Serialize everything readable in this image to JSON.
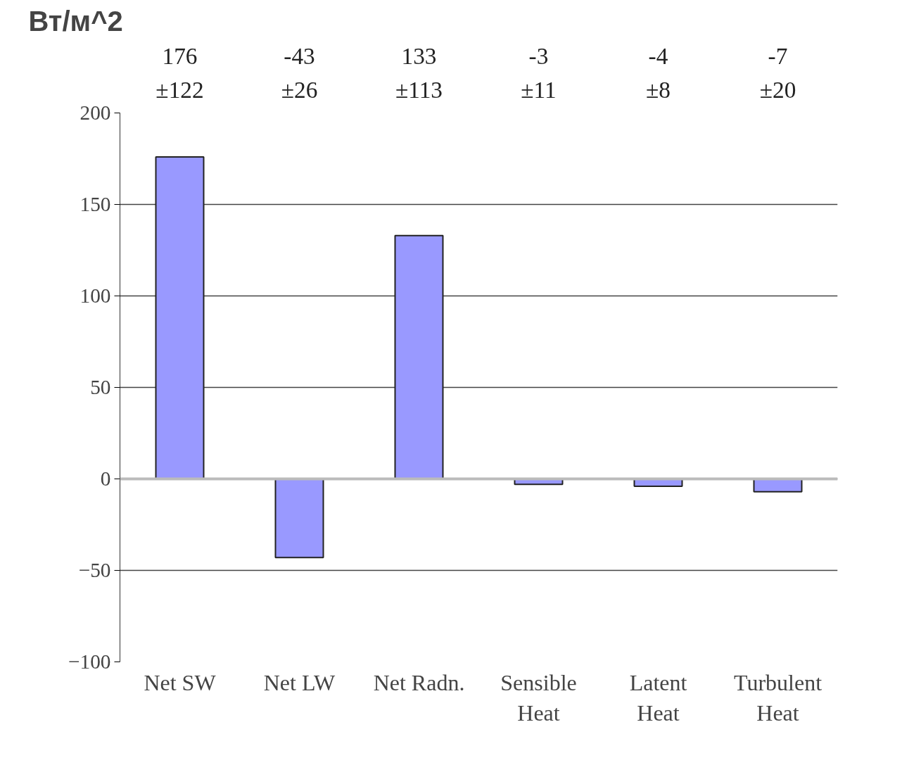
{
  "chart_data": {
    "type": "bar",
    "ylabel": "Вт/м^2",
    "categories": [
      "Net SW",
      "Net LW",
      "Net Radn.",
      "Sensible Heat",
      "Latent Heat",
      "Turbulent Heat"
    ],
    "values": [
      176,
      -43,
      133,
      -3,
      -4,
      -7
    ],
    "value_labels": [
      "176\n±122",
      "-43\n±26",
      "133\n±113",
      "-3\n±11",
      "-4\n±8",
      "-7\n±20"
    ],
    "color": "#9999ff",
    "ylim": [
      -100,
      200
    ],
    "yticks": [
      -100,
      -50,
      0,
      50,
      100,
      150,
      200
    ],
    "grid": "y"
  }
}
